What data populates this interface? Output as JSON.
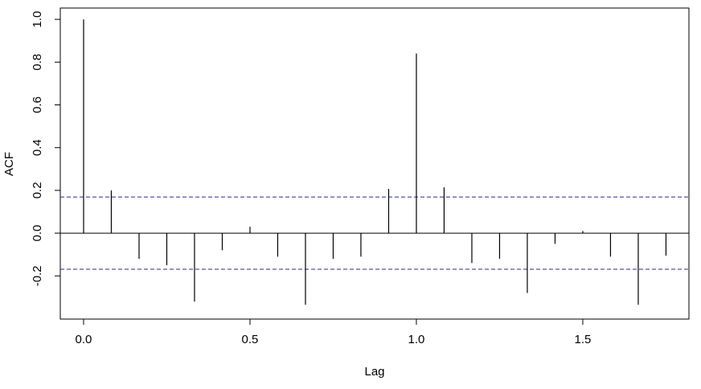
{
  "chart_data": {
    "type": "acf",
    "x_label": "Lag",
    "y_label": "ACF",
    "x": [
      0,
      0.0833,
      0.1667,
      0.25,
      0.3333,
      0.4167,
      0.5,
      0.5833,
      0.6667,
      0.75,
      0.8333,
      0.9167,
      1,
      1.0833,
      1.1667,
      1.25,
      1.3333,
      1.4167,
      1.5,
      1.5833,
      1.6667,
      1.75
    ],
    "values": [
      1.0,
      0.2,
      -0.12,
      -0.15,
      -0.32,
      -0.08,
      0.03,
      -0.11,
      -0.335,
      -0.12,
      -0.11,
      0.207,
      0.84,
      0.214,
      -0.14,
      -0.12,
      -0.28,
      -0.05,
      0.01,
      -0.11,
      -0.335,
      -0.105
    ],
    "color": "#000000",
    "ci_lines": [
      0.169,
      -0.169
    ],
    "ci_color": "#2b2b8f",
    "xlim": [
      -0.07,
      1.819
    ],
    "ylim": [
      -0.402,
      1.053
    ],
    "xticks": [
      {
        "value": 0,
        "label": "0.0"
      },
      0.5,
      {
        "value": 1,
        "label": "1.0"
      },
      1.5
    ],
    "yticks": [
      -0.2,
      {
        "value": 0,
        "label": "0.0"
      },
      0.2,
      0.4,
      0.6,
      0.8,
      {
        "value": 1,
        "label": "1.0"
      }
    ]
  }
}
